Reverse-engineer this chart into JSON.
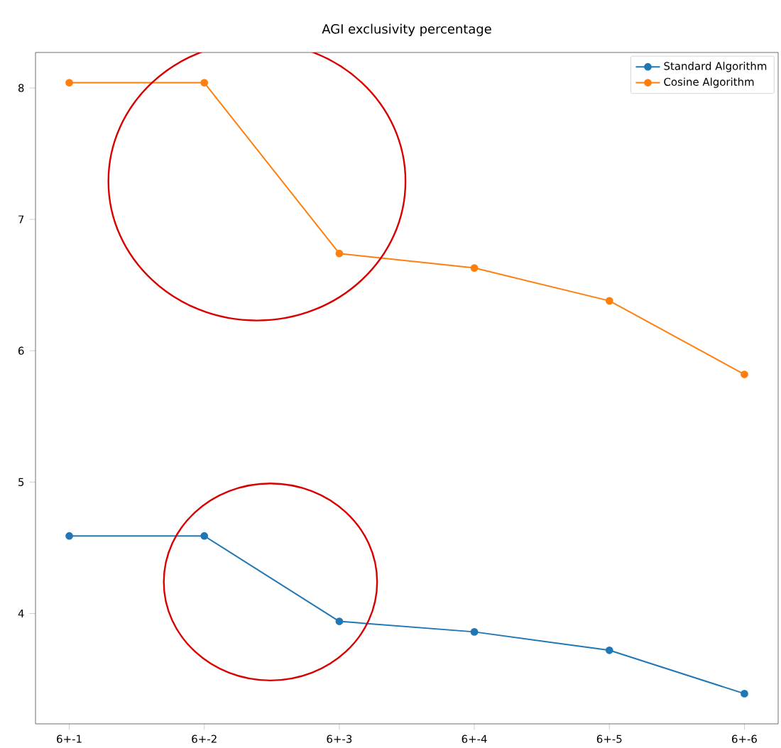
{
  "chart_data": {
    "type": "line",
    "title": "AGI exclusivity percentage",
    "categories": [
      "6+-1",
      "6+-2",
      "6+-3",
      "6+-4",
      "6+-5",
      "6+-6"
    ],
    "series": [
      {
        "name": "Standard Algorithm",
        "color": "#1f77b4",
        "values": [
          4.59,
          4.59,
          3.94,
          3.86,
          3.72,
          3.39
        ]
      },
      {
        "name": "Cosine Algorithm",
        "color": "#ff7f0e",
        "values": [
          8.04,
          8.04,
          6.74,
          6.63,
          6.38,
          5.82
        ]
      }
    ],
    "ylim": [
      3.16,
      8.27
    ],
    "yticks": [
      4,
      5,
      6,
      7,
      8
    ],
    "marker": "circle",
    "line_style": "solid",
    "grid": false,
    "legend": "top right"
  }
}
